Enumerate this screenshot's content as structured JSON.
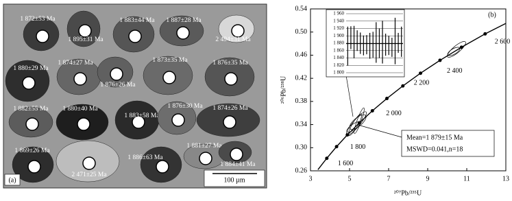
{
  "panel_a": {
    "label": "(a)",
    "scale_bar": "100 µm",
    "labels": [
      "1 872±53 Ma",
      "1 895±31 Ma",
      "1 883±44 Ma",
      "1 887±28 Ma",
      "2 494±31 Ma",
      "1 880±29 Ma",
      "1 874±27 Ma",
      "1 876±26 Ma",
      "1 873±35 Ma",
      "1 876±35 Ma",
      "1 882±55 Ma",
      "1 880±40 Ma",
      "1 883±58 Ma",
      "1 876±30 Ma",
      "1 874±26 Ma",
      "1 869±26 Ma",
      "2 471±25 Ma",
      "1 886±63 Ma",
      "1 881±27 Ma",
      "1 884±41 Ma"
    ]
  },
  "chart_data": {
    "type": "concordia",
    "panel_label": "(b)",
    "x_label": "²⁰⁷Pb/²³⁵U",
    "y_label": "²⁰⁶Pb/²³⁸U",
    "x": [
      3.381,
      3.835,
      4.335,
      4.887,
      5.496,
      6.168,
      6.911,
      7.729,
      8.632,
      9.63,
      10.73,
      11.94,
      13.0
    ],
    "y": [
      0.262,
      0.2817,
      0.3018,
      0.3221,
      0.3428,
      0.3638,
      0.3851,
      0.4068,
      0.4288,
      0.4511,
      0.4737,
      0.4968,
      0.515
    ],
    "age_labels": [
      null,
      "1 600",
      null,
      "1 800",
      null,
      "2 000",
      null,
      "2 200",
      null,
      "2 400",
      null,
      "2 600",
      null
    ],
    "xlim": [
      3,
      13
    ],
    "xticks": [
      3,
      5,
      7,
      9,
      11,
      13
    ],
    "ylim": [
      0.26,
      0.54
    ],
    "yticks": [
      0.26,
      {
        "value": 0.3,
        "label": "0.30"
      },
      0.34,
      0.38,
      0.42,
      0.46,
      {
        "value": 0.5,
        "label": "0.50"
      },
      0.54
    ],
    "annotation": [
      "Mean=1 879±15 Ma",
      "MSWD=0.041,n=18"
    ],
    "inset": {
      "ylim": [
        1800,
        1960
      ],
      "yticks": [
        {
          "value": 1800,
          "label": "1 800"
        },
        {
          "value": 1820,
          "label": "1 820"
        },
        {
          "value": 1840,
          "label": "1 840"
        },
        {
          "value": 1860,
          "label": "1 860"
        },
        {
          "value": 1880,
          "label": "1 880"
        },
        {
          "value": 1900,
          "label": "1 900"
        },
        {
          "value": 1920,
          "label": "1 920"
        },
        {
          "value": 1940,
          "label": "1 940"
        },
        {
          "value": 1960,
          "label": "1 960"
        }
      ],
      "mean": 1879,
      "values": [
        1872,
        1895,
        1883,
        1887,
        1880,
        1874,
        1876,
        1873,
        1876,
        1882,
        1880,
        1883,
        1876,
        1874,
        1869,
        1886,
        1881,
        1884
      ],
      "errors": [
        53,
        31,
        44,
        28,
        29,
        27,
        26,
        35,
        35,
        55,
        40,
        58,
        30,
        26,
        26,
        63,
        27,
        41
      ]
    }
  }
}
